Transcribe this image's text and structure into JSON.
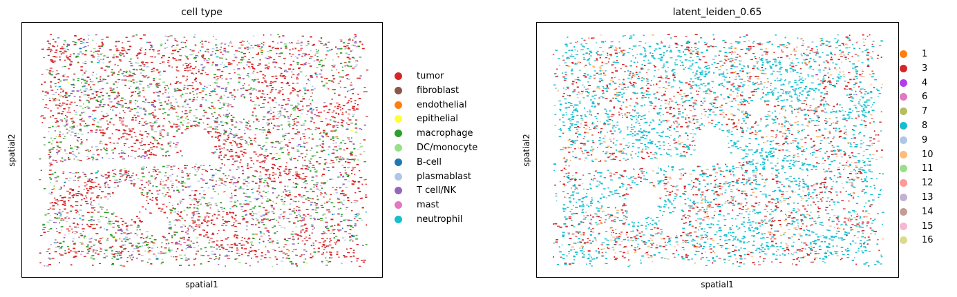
{
  "chart_data": [
    {
      "type": "scatter",
      "title": "cell type",
      "xlabel": "spatial1",
      "ylabel": "spatial2",
      "grid": false,
      "legend_position": "right",
      "series": [
        {
          "name": "tumor",
          "color": "#d62728"
        },
        {
          "name": "fibroblast",
          "color": "#8c564b"
        },
        {
          "name": "endothelial",
          "color": "#ff7f0e"
        },
        {
          "name": "epithelial",
          "color": "#ffff33"
        },
        {
          "name": "macrophage",
          "color": "#2ca02c"
        },
        {
          "name": "DC/monocyte",
          "color": "#98df8a"
        },
        {
          "name": "B-cell",
          "color": "#1f77b4"
        },
        {
          "name": "plasmablast",
          "color": "#aec7e8"
        },
        {
          "name": "T cell/NK",
          "color": "#9467bd"
        },
        {
          "name": "mast",
          "color": "#e377c2"
        },
        {
          "name": "neutrophil",
          "color": "#17becf"
        }
      ]
    },
    {
      "type": "scatter",
      "title": "latent_leiden_0.65",
      "xlabel": "spatial1",
      "ylabel": "spatial2",
      "grid": false,
      "legend_position": "right",
      "series": [
        {
          "name": "1",
          "color": "#ff7f0e"
        },
        {
          "name": "3",
          "color": "#d62728"
        },
        {
          "name": "4",
          "color": "#b13ced"
        },
        {
          "name": "6",
          "color": "#e377c2"
        },
        {
          "name": "7",
          "color": "#b5bd61"
        },
        {
          "name": "8",
          "color": "#17becf"
        },
        {
          "name": "9",
          "color": "#aec7e8"
        },
        {
          "name": "10",
          "color": "#ffbb78"
        },
        {
          "name": "11",
          "color": "#98df8a"
        },
        {
          "name": "12",
          "color": "#ff9896"
        },
        {
          "name": "13",
          "color": "#c5b0d5"
        },
        {
          "name": "14",
          "color": "#c49c94"
        },
        {
          "name": "15",
          "color": "#f7b6d2"
        },
        {
          "name": "16",
          "color": "#dbdb8d"
        }
      ]
    }
  ]
}
